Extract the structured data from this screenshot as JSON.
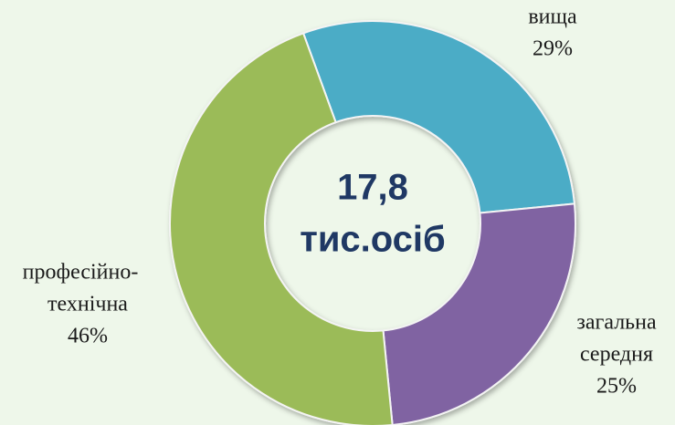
{
  "chart_data": {
    "type": "donut",
    "center_label": [
      "17,8",
      "тис.осіб"
    ],
    "categories": [
      [
        "вища"
      ],
      [
        "загальна",
        "середня"
      ],
      [
        "професійно-",
        "технічна"
      ]
    ],
    "values": [
      29,
      25,
      46
    ],
    "value_labels": [
      "29%",
      "25%",
      "46%"
    ],
    "colors": [
      "#4bacc6",
      "#8064a2",
      "#9bbb59"
    ]
  }
}
